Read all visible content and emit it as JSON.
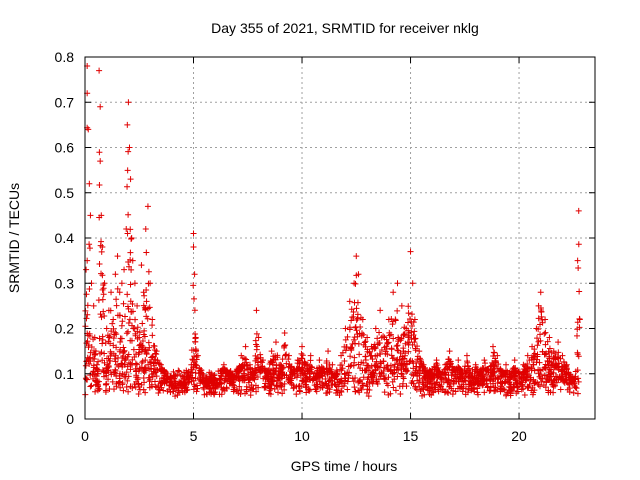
{
  "chart_data": {
    "type": "scatter",
    "title": "Day 355 of 2021, SRMTID for receiver nklg",
    "xlabel": "GPS time / hours",
    "ylabel": "SRMTID / TECUs",
    "xlim": [
      0,
      23.5
    ],
    "ylim": [
      0,
      0.8
    ],
    "xticks": [
      0,
      5,
      10,
      15,
      20
    ],
    "xtick_labels": [
      "0",
      "5",
      "10",
      "15",
      "20"
    ],
    "yticks": [
      0,
      0.1,
      0.2,
      0.3,
      0.4,
      0.5,
      0.6,
      0.7,
      0.8
    ],
    "ytick_labels": [
      "0",
      "0.1",
      "0.2",
      "0.3",
      "0.4",
      "0.5",
      "0.6",
      "0.7",
      "0.8"
    ],
    "grid": true,
    "marker": "plus",
    "series": [
      {
        "name": "SRMTID",
        "color": "#e00000",
        "x": [
          0.05,
          0.1,
          0.1,
          0.15,
          0.2,
          0.25,
          0.3,
          0.4,
          0.45,
          0.5,
          0.55,
          0.6,
          0.65,
          0.7,
          0.7,
          0.75,
          0.8,
          0.9,
          1.0,
          1.1,
          1.2,
          1.3,
          1.4,
          1.5,
          1.6,
          1.7,
          1.8,
          1.9,
          1.95,
          2.0,
          2.05,
          2.1,
          2.15,
          2.2,
          2.3,
          2.4,
          2.5,
          2.6,
          2.7,
          2.8,
          2.9,
          3.0,
          3.1,
          3.3,
          3.5,
          3.7,
          3.9,
          4.1,
          4.3,
          4.5,
          4.7,
          4.9,
          5.0,
          5.0,
          5.05,
          5.1,
          5.2,
          5.4,
          5.6,
          5.8,
          6.0,
          6.2,
          6.4,
          6.6,
          6.8,
          7.0,
          7.2,
          7.4,
          7.6,
          7.8,
          7.9,
          8.0,
          8.2,
          8.4,
          8.6,
          8.8,
          9.0,
          9.2,
          9.4,
          9.6,
          9.8,
          10.0,
          10.2,
          10.4,
          10.6,
          10.8,
          11.0,
          11.2,
          11.4,
          11.6,
          11.8,
          12.0,
          12.2,
          12.4,
          12.5,
          12.6,
          12.8,
          13.0,
          13.2,
          13.4,
          13.6,
          13.8,
          14.0,
          14.2,
          14.4,
          14.6,
          14.8,
          15.0,
          15.1,
          15.2,
          15.4,
          15.6,
          15.8,
          16.0,
          16.2,
          16.4,
          16.6,
          16.8,
          17.0,
          17.2,
          17.4,
          17.6,
          17.8,
          18.0,
          18.2,
          18.4,
          18.6,
          18.8,
          19.0,
          19.2,
          19.4,
          19.6,
          19.8,
          20.0,
          20.2,
          20.4,
          20.6,
          20.8,
          20.9,
          21.0,
          21.2,
          21.4,
          21.6,
          21.8,
          22.0,
          22.2,
          22.4,
          22.6,
          22.7,
          22.75,
          22.8
        ],
        "y": [
          0.33,
          0.78,
          0.72,
          0.64,
          0.52,
          0.45,
          0.3,
          0.25,
          0.18,
          0.15,
          0.12,
          0.1,
          0.77,
          0.69,
          0.57,
          0.45,
          0.38,
          0.3,
          0.2,
          0.24,
          0.28,
          0.22,
          0.32,
          0.36,
          0.28,
          0.3,
          0.33,
          0.42,
          0.65,
          0.7,
          0.6,
          0.53,
          0.4,
          0.35,
          0.3,
          0.25,
          0.18,
          0.34,
          0.28,
          0.42,
          0.47,
          0.3,
          0.22,
          0.15,
          0.12,
          0.1,
          0.08,
          0.09,
          0.07,
          0.06,
          0.09,
          0.12,
          0.41,
          0.38,
          0.32,
          0.18,
          0.14,
          0.1,
          0.08,
          0.06,
          0.07,
          0.09,
          0.12,
          0.1,
          0.08,
          0.11,
          0.14,
          0.16,
          0.12,
          0.1,
          0.24,
          0.18,
          0.13,
          0.1,
          0.15,
          0.17,
          0.12,
          0.19,
          0.14,
          0.11,
          0.13,
          0.16,
          0.12,
          0.14,
          0.1,
          0.13,
          0.11,
          0.15,
          0.12,
          0.1,
          0.14,
          0.2,
          0.26,
          0.3,
          0.36,
          0.32,
          0.22,
          0.18,
          0.16,
          0.2,
          0.24,
          0.18,
          0.22,
          0.28,
          0.3,
          0.25,
          0.2,
          0.37,
          0.3,
          0.22,
          0.15,
          0.12,
          0.1,
          0.11,
          0.13,
          0.09,
          0.12,
          0.15,
          0.11,
          0.13,
          0.1,
          0.14,
          0.09,
          0.12,
          0.1,
          0.13,
          0.11,
          0.16,
          0.14,
          0.1,
          0.12,
          0.09,
          0.13,
          0.1,
          0.12,
          0.14,
          0.16,
          0.2,
          0.25,
          0.28,
          0.22,
          0.18,
          0.15,
          0.17,
          0.14,
          0.12,
          0.09,
          0.07,
          0.35,
          0.46,
          0.22
        ],
        "n_random_fill": 2400
      }
    ]
  }
}
